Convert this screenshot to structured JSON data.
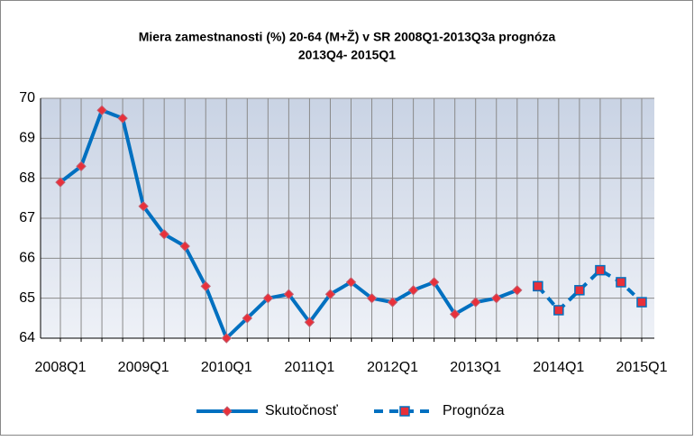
{
  "chart_data": {
    "type": "line",
    "title_lines": [
      "Miera zamestnanosti (%) 20-64 (M+Ž) v SR 2008Q1-2013Q3a prognóza",
      "2013Q4- 2015Q1"
    ],
    "categories": [
      "2008Q1",
      null,
      null,
      null,
      "2009Q1",
      null,
      null,
      null,
      "2010Q1",
      null,
      null,
      null,
      "2011Q1",
      null,
      null,
      null,
      "2012Q1",
      null,
      null,
      null,
      "2013Q1",
      null,
      null,
      null,
      "2014Q1",
      null,
      null,
      null,
      "2015Q1"
    ],
    "series": [
      {
        "name": "Skutočnosť",
        "color": "#0070c0",
        "marker": "diamond",
        "marker_color": "#e8303a",
        "dashed": false,
        "values": [
          67.9,
          68.3,
          69.7,
          69.5,
          67.3,
          66.6,
          66.3,
          65.3,
          64.0,
          64.5,
          65.0,
          65.1,
          64.4,
          65.1,
          65.4,
          65.0,
          64.9,
          65.2,
          65.4,
          64.6,
          64.9,
          65.0,
          65.2,
          null,
          null,
          null,
          null,
          null,
          null
        ]
      },
      {
        "name": "Prognóza",
        "color": "#0070c0",
        "marker": "square",
        "marker_color": "#e8303a",
        "dashed": true,
        "values": [
          null,
          null,
          null,
          null,
          null,
          null,
          null,
          null,
          null,
          null,
          null,
          null,
          null,
          null,
          null,
          null,
          null,
          null,
          null,
          null,
          null,
          null,
          null,
          65.3,
          64.7,
          65.2,
          65.7,
          65.4,
          64.9
        ]
      }
    ],
    "ylim": [
      64,
      70
    ],
    "yticks": [
      64,
      65,
      66,
      67,
      68,
      69,
      70
    ],
    "grid": true,
    "legend": "bottom"
  }
}
